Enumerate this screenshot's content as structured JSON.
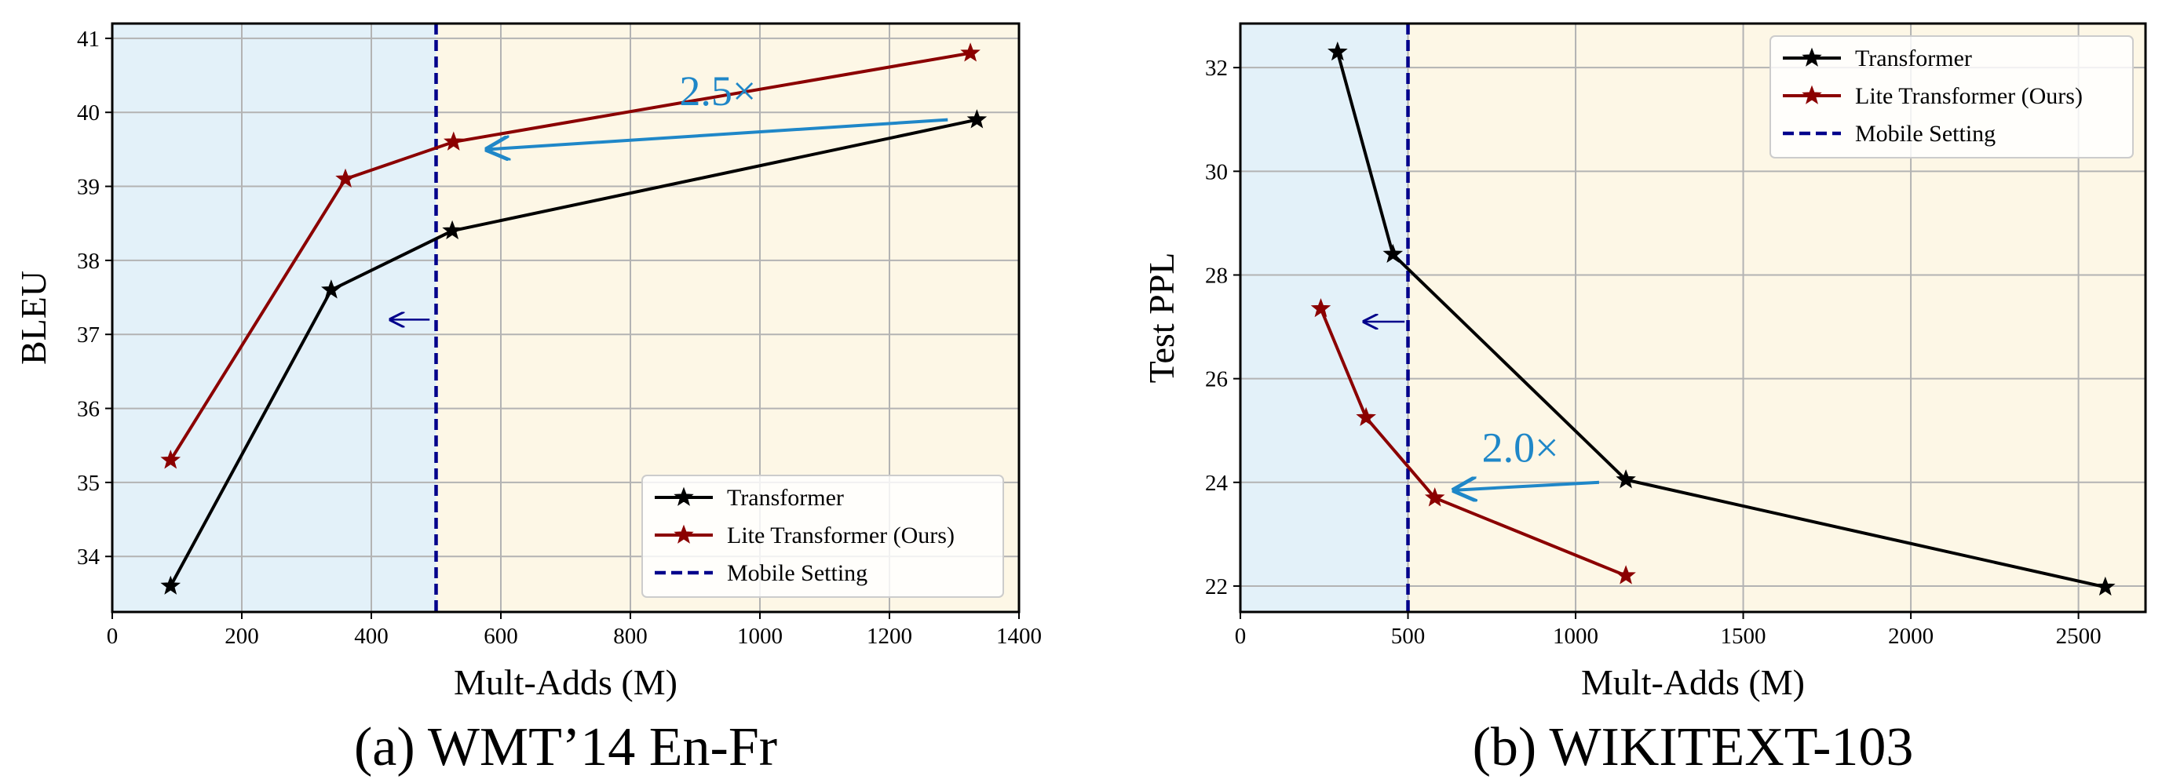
{
  "chart_data": [
    {
      "type": "line",
      "caption": "(a) WMT’14 En-Fr",
      "xlabel": "Mult-Adds (M)",
      "ylabel": "BLEU",
      "xlim": [
        0,
        1400
      ],
      "ylim": [
        33.25,
        41.2
      ],
      "xticks": [
        0,
        200,
        400,
        600,
        800,
        1000,
        1200,
        1400
      ],
      "yticks": [
        34,
        35,
        36,
        37,
        38,
        39,
        40,
        41
      ],
      "grid": true,
      "mobile_setting_x": 500,
      "regions": {
        "left_color": "#e3f1f9",
        "right_color": "#fdf7e6"
      },
      "series": [
        {
          "name": "Transformer",
          "color": "#000000",
          "marker": "star",
          "x": [
            90,
            338,
            525,
            1335
          ],
          "y": [
            33.6,
            37.6,
            38.4,
            39.9
          ]
        },
        {
          "name": "Lite Transformer (Ours)",
          "color": "#8b0000",
          "marker": "star",
          "x": [
            90,
            360,
            527,
            1325
          ],
          "y": [
            35.3,
            39.1,
            39.6,
            40.8
          ]
        },
        {
          "name": "Mobile Setting",
          "color": "#00008b",
          "style": "dashed"
        }
      ],
      "annotation": {
        "text": "2.5×",
        "color": "#1f87c8",
        "arrow_from": [
          1290,
          39.9
        ],
        "arrow_to": [
          580,
          39.5
        ],
        "text_at": [
          935,
          40.1
        ]
      },
      "direction_arrow": {
        "from": [
          490,
          37.2
        ],
        "to": [
          430,
          37.2
        ],
        "color": "#00008b"
      },
      "legend_position": "lower-right"
    },
    {
      "type": "line",
      "caption": "(b) WIKITEXT-103",
      "xlabel": "Mult-Adds (M)",
      "ylabel": "Test PPL",
      "xlim": [
        0,
        2700
      ],
      "ylim": [
        21.5,
        32.85
      ],
      "xticks": [
        0,
        500,
        1000,
        1500,
        2000,
        2500
      ],
      "yticks": [
        22,
        24,
        26,
        28,
        30,
        32
      ],
      "grid": true,
      "mobile_setting_x": 500,
      "regions": {
        "left_color": "#e3f1f9",
        "right_color": "#fdf7e6"
      },
      "series": [
        {
          "name": "Transformer",
          "color": "#000000",
          "marker": "star",
          "x": [
            290,
            455,
            1150,
            2580
          ],
          "y": [
            32.3,
            28.4,
            24.05,
            21.98
          ]
        },
        {
          "name": "Lite Transformer (Ours)",
          "color": "#8b0000",
          "marker": "star",
          "x": [
            240,
            375,
            580,
            1150
          ],
          "y": [
            27.35,
            25.25,
            23.7,
            22.2
          ]
        },
        {
          "name": "Mobile Setting",
          "color": "#00008b",
          "style": "dashed"
        }
      ],
      "annotation": {
        "text": "2.0×",
        "color": "#1f87c8",
        "arrow_from": [
          1070,
          24.0
        ],
        "arrow_to": [
          640,
          23.85
        ],
        "text_at": [
          835,
          24.4
        ]
      },
      "direction_arrow": {
        "from": [
          490,
          27.1
        ],
        "to": [
          370,
          27.1
        ],
        "color": "#00008b"
      },
      "legend_position": "upper-right"
    }
  ]
}
